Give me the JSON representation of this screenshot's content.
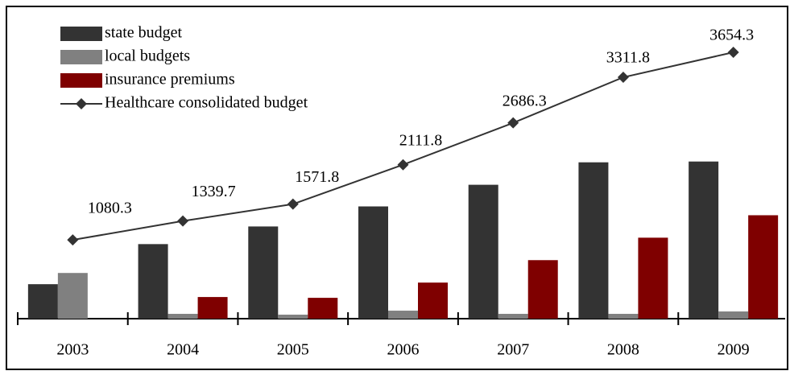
{
  "chart_data": {
    "type": "bar",
    "categories": [
      "2003",
      "2004",
      "2005",
      "2006",
      "2007",
      "2008",
      "2009"
    ],
    "series": [
      {
        "name": "state budget",
        "color": "#333333",
        "values": [
          473,
          1023,
          1265,
          1540,
          1837,
          2145,
          2156
        ]
      },
      {
        "name": "local budgets",
        "color": "#808080",
        "values": [
          627,
          66,
          55,
          110,
          66,
          66,
          99
        ]
      },
      {
        "name": "insurance premiums",
        "color": "#7f0000",
        "values": [
          0,
          297,
          286,
          495,
          803,
          1111,
          1419
        ]
      },
      {
        "name": "Healthcare consolidated budget",
        "color": "#333333",
        "type": "line",
        "values": [
          1080.3,
          1339.7,
          1571.8,
          2111.8,
          2686.3,
          3311.8,
          3654.3
        ]
      }
    ],
    "legend": "top-left"
  }
}
